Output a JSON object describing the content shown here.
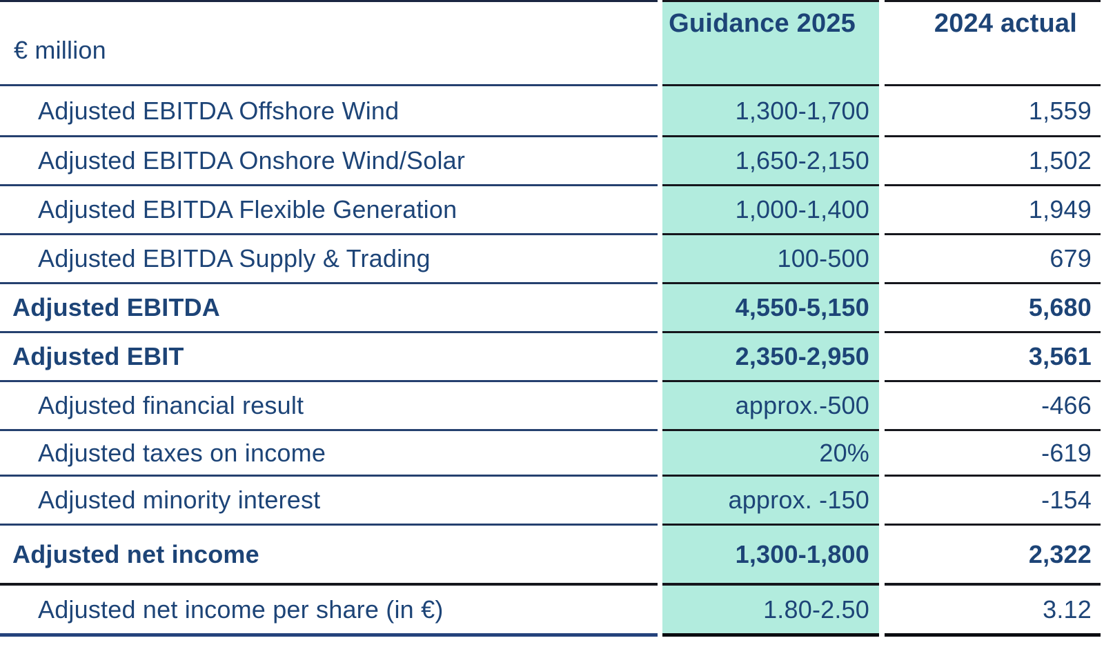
{
  "table": {
    "unit_label": "€ million",
    "columns": [
      {
        "key": "guidance",
        "label": "Guidance 2025"
      },
      {
        "key": "actual",
        "label": "2024 actual"
      }
    ],
    "rows": [
      {
        "label": "Adjusted EBITDA Offshore Wind",
        "guidance": "1,300-1,700",
        "actual": "1,559",
        "emphasis": false
      },
      {
        "label": "Adjusted EBITDA Onshore Wind/Solar",
        "guidance": "1,650-2,150",
        "actual": "1,502",
        "emphasis": false
      },
      {
        "label": "Adjusted EBITDA Flexible Generation",
        "guidance": "1,000-1,400",
        "actual": "1,949",
        "emphasis": false
      },
      {
        "label": "Adjusted EBITDA Supply & Trading",
        "guidance": "100-500",
        "actual": "679",
        "emphasis": false
      },
      {
        "label": "Adjusted EBITDA",
        "guidance": "4,550-5,150",
        "actual": "5,680",
        "emphasis": true
      },
      {
        "label": "Adjusted EBIT",
        "guidance": "2,350-2,950",
        "actual": "3,561",
        "emphasis": true
      },
      {
        "label": "Adjusted financial result",
        "guidance": "approx.-500",
        "actual": "-466",
        "emphasis": false
      },
      {
        "label": "Adjusted taxes on income",
        "guidance": "20%",
        "actual": "-619",
        "emphasis": false
      },
      {
        "label": "Adjusted minority interest",
        "guidance": "approx. -150",
        "actual": "-154",
        "emphasis": false
      },
      {
        "label": "Adjusted net income",
        "guidance": "1,300-1,800",
        "actual": "2,322",
        "emphasis": true
      },
      {
        "label": "Adjusted net income per share (in €)",
        "guidance": "1.80-2.50",
        "actual": "3.12",
        "emphasis": false
      }
    ],
    "colors": {
      "highlight_column": "#b2ecde",
      "text_navy": "#1d4477",
      "label_line_navy": "#25406f",
      "value_line_dark": "#15161c"
    }
  },
  "chart_data": {
    "type": "table",
    "title": "Guidance 2025 vs 2024 actual (€ million)",
    "columns": [
      "€ million",
      "Guidance 2025",
      "2024 actual"
    ],
    "rows": [
      [
        "Adjusted EBITDA Offshore Wind",
        "1,300-1,700",
        "1,559"
      ],
      [
        "Adjusted EBITDA Onshore Wind/Solar",
        "1,650-2,150",
        "1,502"
      ],
      [
        "Adjusted EBITDA Flexible Generation",
        "1,000-1,400",
        "1,949"
      ],
      [
        "Adjusted EBITDA Supply & Trading",
        "100-500",
        "679"
      ],
      [
        "Adjusted EBITDA",
        "4,550-5,150",
        "5,680"
      ],
      [
        "Adjusted EBIT",
        "2,350-2,950",
        "3,561"
      ],
      [
        "Adjusted financial result",
        "approx.-500",
        "-466"
      ],
      [
        "Adjusted taxes on income",
        "20%",
        "-619"
      ],
      [
        "Adjusted minority interest",
        "approx. -150",
        "-154"
      ],
      [
        "Adjusted net income",
        "1,300-1,800",
        "2,322"
      ],
      [
        "Adjusted net income per share (in €)",
        "1.80-2.50",
        "3.12"
      ]
    ],
    "notes": {
      "highlighted_column": "Guidance 2025",
      "bold_rows": [
        "Adjusted EBITDA",
        "Adjusted EBIT",
        "Adjusted net income"
      ]
    }
  }
}
